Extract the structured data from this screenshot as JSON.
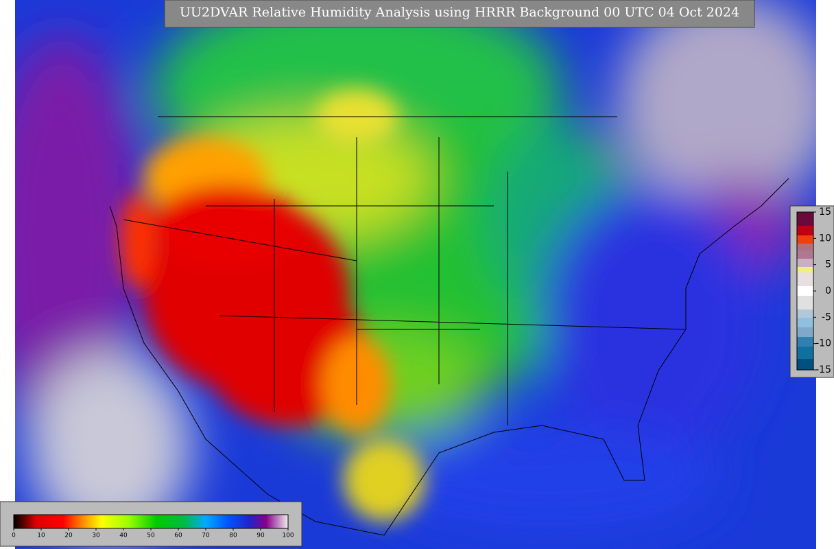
{
  "title": "UU2DVAR Relative Humidity Analysis using HRRR Background 00 UTC 04 Oct 2024",
  "colorbar": {
    "ticks": [
      0,
      10,
      20,
      30,
      40,
      50,
      60,
      70,
      80,
      90,
      100
    ]
  },
  "diff_colorbar": {
    "ticks": [
      15,
      10,
      5,
      0,
      -5,
      -10,
      -15
    ]
  }
}
